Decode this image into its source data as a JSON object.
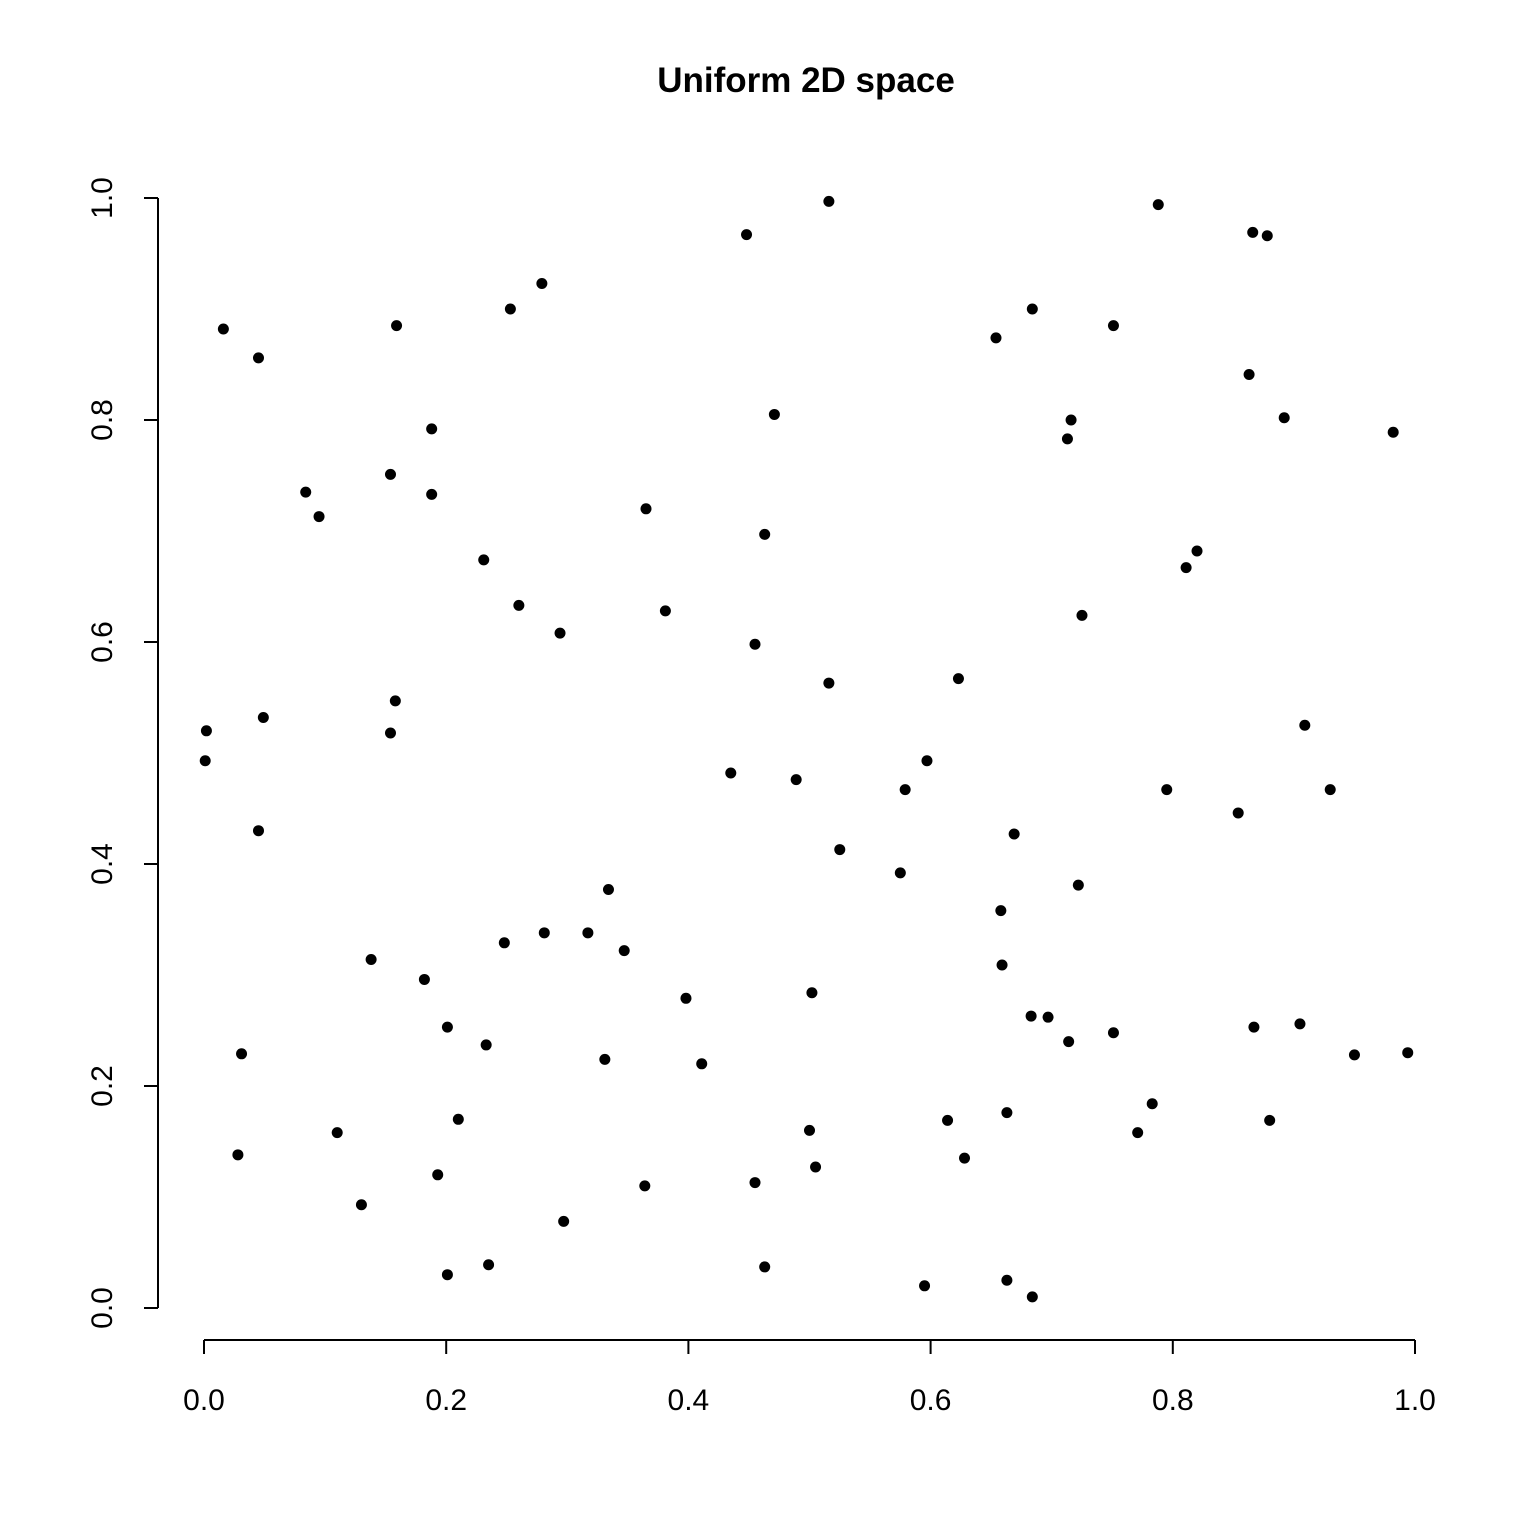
{
  "chart_data": {
    "type": "scatter",
    "title": "Uniform 2D space",
    "xlabel": "",
    "ylabel": "",
    "xlim": [
      0,
      1
    ],
    "ylim": [
      0,
      1
    ],
    "grid": false,
    "x_ticks": [
      "0.0",
      "0.2",
      "0.4",
      "0.6",
      "0.8",
      "1.0"
    ],
    "y_ticks": [
      "0.0",
      "0.2",
      "0.4",
      "0.6",
      "0.8",
      "1.0"
    ],
    "colors": {
      "point": "#000000",
      "axis": "#000000"
    },
    "points": [
      [
        0.448,
        0.967
      ],
      [
        0.516,
        0.997
      ],
      [
        0.788,
        0.994
      ],
      [
        0.866,
        0.969
      ],
      [
        0.878,
        0.966
      ],
      [
        0.016,
        0.882
      ],
      [
        0.045,
        0.856
      ],
      [
        0.159,
        0.885
      ],
      [
        0.253,
        0.9
      ],
      [
        0.279,
        0.923
      ],
      [
        0.654,
        0.874
      ],
      [
        0.684,
        0.9
      ],
      [
        0.751,
        0.885
      ],
      [
        0.863,
        0.841
      ],
      [
        0.892,
        0.802
      ],
      [
        0.982,
        0.789
      ],
      [
        0.716,
        0.8
      ],
      [
        0.713,
        0.783
      ],
      [
        0.471,
        0.805
      ],
      [
        0.188,
        0.792
      ],
      [
        0.154,
        0.751
      ],
      [
        0.084,
        0.735
      ],
      [
        0.095,
        0.713
      ],
      [
        0.188,
        0.733
      ],
      [
        0.365,
        0.72
      ],
      [
        0.463,
        0.697
      ],
      [
        0.231,
        0.674
      ],
      [
        0.26,
        0.633
      ],
      [
        0.294,
        0.608
      ],
      [
        0.381,
        0.628
      ],
      [
        0.455,
        0.598
      ],
      [
        0.725,
        0.624
      ],
      [
        0.811,
        0.667
      ],
      [
        0.82,
        0.682
      ],
      [
        0.516,
        0.563
      ],
      [
        0.623,
        0.567
      ],
      [
        0.002,
        0.52
      ],
      [
        0.001,
        0.493
      ],
      [
        0.049,
        0.532
      ],
      [
        0.158,
        0.547
      ],
      [
        0.154,
        0.518
      ],
      [
        0.909,
        0.525
      ],
      [
        0.435,
        0.482
      ],
      [
        0.489,
        0.476
      ],
      [
        0.597,
        0.493
      ],
      [
        0.579,
        0.467
      ],
      [
        0.795,
        0.467
      ],
      [
        0.93,
        0.467
      ],
      [
        0.854,
        0.446
      ],
      [
        0.045,
        0.43
      ],
      [
        0.669,
        0.427
      ],
      [
        0.525,
        0.413
      ],
      [
        0.575,
        0.392
      ],
      [
        0.722,
        0.381
      ],
      [
        0.334,
        0.377
      ],
      [
        0.658,
        0.358
      ],
      [
        0.281,
        0.338
      ],
      [
        0.317,
        0.338
      ],
      [
        0.248,
        0.329
      ],
      [
        0.347,
        0.322
      ],
      [
        0.138,
        0.314
      ],
      [
        0.659,
        0.309
      ],
      [
        0.182,
        0.296
      ],
      [
        0.502,
        0.284
      ],
      [
        0.398,
        0.279
      ],
      [
        0.683,
        0.263
      ],
      [
        0.697,
        0.262
      ],
      [
        0.201,
        0.253
      ],
      [
        0.867,
        0.253
      ],
      [
        0.905,
        0.256
      ],
      [
        0.751,
        0.248
      ],
      [
        0.714,
        0.24
      ],
      [
        0.233,
        0.237
      ],
      [
        0.031,
        0.229
      ],
      [
        0.95,
        0.228
      ],
      [
        0.994,
        0.23
      ],
      [
        0.331,
        0.224
      ],
      [
        0.411,
        0.22
      ],
      [
        0.783,
        0.184
      ],
      [
        0.663,
        0.176
      ],
      [
        0.614,
        0.169
      ],
      [
        0.21,
        0.17
      ],
      [
        0.88,
        0.169
      ],
      [
        0.11,
        0.158
      ],
      [
        0.5,
        0.16
      ],
      [
        0.771,
        0.158
      ],
      [
        0.028,
        0.138
      ],
      [
        0.628,
        0.135
      ],
      [
        0.505,
        0.127
      ],
      [
        0.193,
        0.12
      ],
      [
        0.455,
        0.113
      ],
      [
        0.364,
        0.11
      ],
      [
        0.13,
        0.093
      ],
      [
        0.297,
        0.078
      ],
      [
        0.235,
        0.039
      ],
      [
        0.463,
        0.037
      ],
      [
        0.201,
        0.03
      ],
      [
        0.595,
        0.02
      ],
      [
        0.663,
        0.025
      ],
      [
        0.684,
        0.01
      ]
    ]
  }
}
